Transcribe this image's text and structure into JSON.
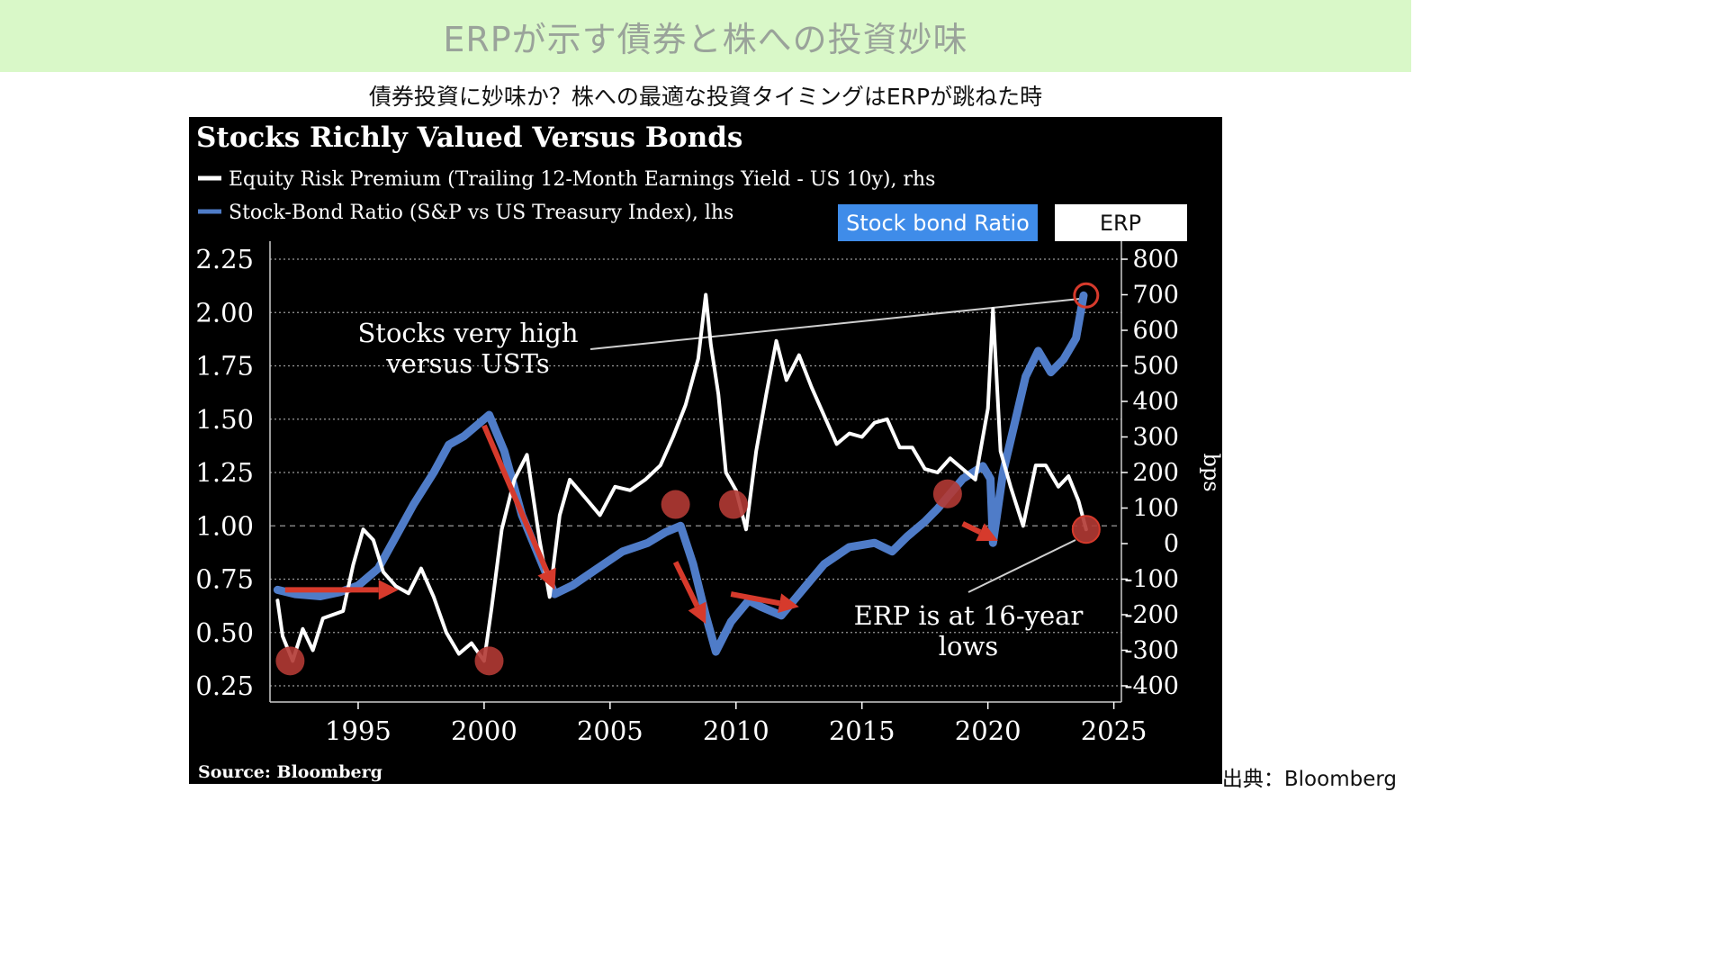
{
  "banner": {
    "title": "ERPが示す債券と株への投資妙味"
  },
  "subtitle": "債券投資に妙味か？株への最適な投資タイミングはERPが跳ねた時",
  "source_note": "出典：Bloomberg",
  "chart_data": {
    "type": "line",
    "title": "Stocks Richly Valued Versus Bonds",
    "legend": [
      {
        "label": "Equity Risk Premium (Trailing 12-Month Earnings Yield - US 10y), rhs",
        "color": "#ffffff"
      },
      {
        "label": "Stock-Bond Ratio (S&P vs US Treasury Index), lhs",
        "color": "#4f7cc8"
      }
    ],
    "buttons": {
      "stock_bond": "Stock bond Ratio",
      "erp": "ERP"
    },
    "x_axis": {
      "min": 1991.5,
      "max": 2025.3,
      "ticks": [
        1995,
        2000,
        2005,
        2010,
        2015,
        2020,
        2025
      ]
    },
    "left_axis": {
      "min": 0.25,
      "max": 2.25,
      "ticks": [
        "2.25",
        "2.00",
        "1.75",
        "1.50",
        "1.25",
        "1.00",
        "0.75",
        "0.50",
        "0.25"
      ]
    },
    "right_axis": {
      "min": -400,
      "max": 800,
      "ylabel": "bps",
      "ticks": [
        "800",
        "700",
        "600",
        "500",
        "400",
        "300",
        "200",
        "100",
        "0",
        "-100",
        "-200",
        "-300",
        "-400"
      ]
    },
    "series": [
      {
        "name": "Stock-Bond Ratio (S&P vs US Treasury Index), lhs",
        "axis": "left",
        "color": "#4f7cc8",
        "x": [
          1991.8,
          1992.5,
          1993.5,
          1994.3,
          1995.0,
          1995.8,
          1996.5,
          1997.2,
          1998.0,
          1998.6,
          1999.2,
          1999.8,
          2000.2,
          2000.8,
          2001.5,
          2002.2,
          2002.8,
          2003.5,
          2004.5,
          2005.5,
          2006.5,
          2007.2,
          2007.8,
          2008.3,
          2008.8,
          2009.2,
          2009.8,
          2010.5,
          2011.0,
          2011.8,
          2012.5,
          2013.5,
          2014.5,
          2015.5,
          2016.2,
          2016.8,
          2017.5,
          2018.0,
          2018.5,
          2019.0,
          2019.8,
          2020.1,
          2020.2,
          2020.6,
          2021.0,
          2021.5,
          2022.0,
          2022.5,
          2023.0,
          2023.5,
          2023.8
        ],
        "values": [
          0.7,
          0.68,
          0.67,
          0.69,
          0.72,
          0.8,
          0.95,
          1.1,
          1.25,
          1.38,
          1.42,
          1.48,
          1.52,
          1.35,
          1.05,
          0.85,
          0.68,
          0.72,
          0.8,
          0.88,
          0.92,
          0.97,
          1.0,
          0.82,
          0.58,
          0.41,
          0.55,
          0.65,
          0.62,
          0.58,
          0.68,
          0.82,
          0.9,
          0.92,
          0.88,
          0.95,
          1.02,
          1.08,
          1.15,
          1.22,
          1.28,
          1.22,
          0.92,
          1.25,
          1.45,
          1.7,
          1.82,
          1.72,
          1.78,
          1.88,
          2.08
        ]
      },
      {
        "name": "Equity Risk Premium (Trailing 12-Month Earnings Yield - US 10y), rhs",
        "axis": "right",
        "color": "#ffffff",
        "x": [
          1991.8,
          1992.0,
          1992.4,
          1992.8,
          1993.2,
          1993.6,
          1994.0,
          1994.4,
          1994.8,
          1995.2,
          1995.6,
          1996.0,
          1996.5,
          1997.0,
          1997.5,
          1998.0,
          1998.5,
          1999.0,
          1999.5,
          2000.0,
          2000.3,
          2000.7,
          2001.2,
          2001.7,
          2002.2,
          2002.6,
          2003.0,
          2003.4,
          2004.0,
          2004.6,
          2005.2,
          2005.8,
          2006.4,
          2007.0,
          2007.5,
          2008.0,
          2008.5,
          2008.8,
          2009.0,
          2009.3,
          2009.6,
          2010.0,
          2010.4,
          2010.8,
          2011.2,
          2011.6,
          2012.0,
          2012.5,
          2013.0,
          2013.5,
          2014.0,
          2014.5,
          2015.0,
          2015.5,
          2016.0,
          2016.5,
          2017.0,
          2017.5,
          2018.0,
          2018.5,
          2019.0,
          2019.5,
          2020.0,
          2020.2,
          2020.5,
          2020.9,
          2021.4,
          2021.9,
          2022.3,
          2022.8,
          2023.2,
          2023.6,
          2023.9
        ],
        "values": [
          -160,
          -260,
          -330,
          -240,
          -300,
          -210,
          -200,
          -190,
          -60,
          40,
          10,
          -80,
          -120,
          -140,
          -70,
          -150,
          -250,
          -310,
          -280,
          -330,
          -180,
          40,
          180,
          250,
          10,
          -150,
          80,
          180,
          130,
          80,
          160,
          150,
          180,
          220,
          300,
          390,
          520,
          700,
          560,
          420,
          200,
          150,
          40,
          260,
          420,
          570,
          460,
          530,
          440,
          360,
          280,
          310,
          300,
          340,
          350,
          270,
          270,
          210,
          200,
          240,
          210,
          180,
          380,
          660,
          260,
          160,
          50,
          220,
          220,
          160,
          190,
          120,
          40
        ]
      }
    ],
    "annotations": [
      {
        "text": "Stocks very high",
        "text2": "versus USTs"
      },
      {
        "text": "ERP is at 16-year",
        "text2": "lows"
      }
    ],
    "source": "Source: Bloomberg",
    "arrow_color": "#d63a2c"
  }
}
